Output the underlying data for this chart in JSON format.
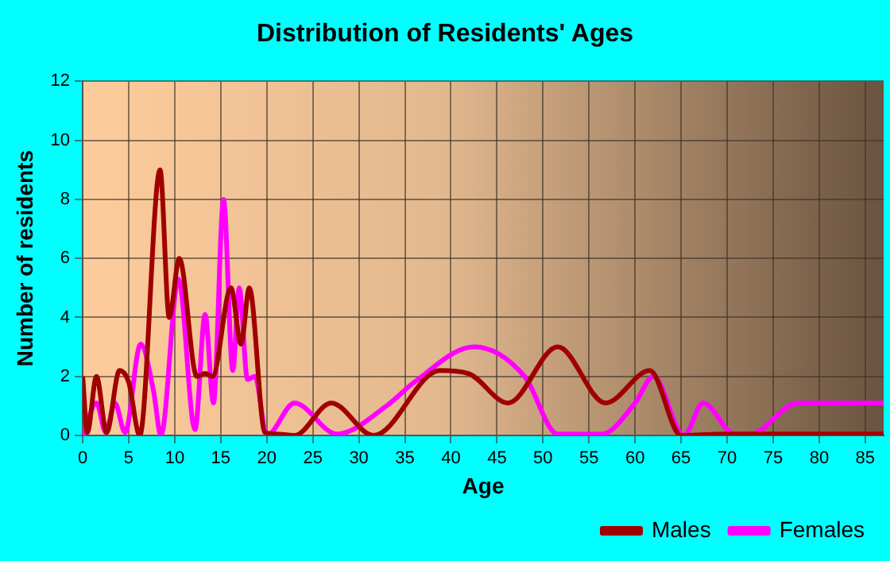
{
  "chart_data": {
    "type": "line",
    "title": "Distribution of Residents' Ages",
    "xlabel": "Age",
    "ylabel": "Number of residents",
    "series": [
      {
        "name": "Males",
        "color": "#a00000",
        "x": [
          0,
          0.5,
          1.5,
          2.6,
          4,
          5,
          6.2,
          8.4,
          9.4,
          10.5,
          12.4,
          13.3,
          14.1,
          16.1,
          17.2,
          18.1,
          19.8,
          21,
          23,
          27,
          31.6,
          38.8,
          41.9,
          46.2,
          51.6,
          56.8,
          61.6,
          65,
          70,
          87
        ],
        "values": [
          2,
          0.1,
          2,
          0.1,
          2.2,
          1.8,
          0,
          9,
          4,
          6,
          2,
          2.1,
          2,
          5,
          3.1,
          5,
          0.1,
          0.05,
          0,
          1.1,
          0,
          2.2,
          2.1,
          1.1,
          3,
          1.1,
          2.2,
          0,
          0.05,
          0.05
        ]
      },
      {
        "name": "Females",
        "color": "#ff00ff",
        "x": [
          0,
          1.5,
          2.5,
          3.5,
          4.6,
          6.3,
          7.7,
          8.5,
          10.4,
          12.2,
          13.3,
          14.2,
          15.3,
          16.3,
          17,
          17.9,
          18.7,
          20,
          23,
          27.6,
          33,
          36,
          42.5,
          48,
          51.6,
          56.4,
          60,
          62,
          65.3,
          67.4,
          70.8,
          72.5,
          77.7,
          87
        ],
        "values": [
          0,
          1.1,
          0.1,
          1.1,
          0.1,
          3.1,
          1.5,
          0,
          5.3,
          0.2,
          4.1,
          1.1,
          8,
          2.2,
          5,
          1.9,
          2,
          0,
          1.1,
          0.05,
          1,
          1.8,
          3,
          2,
          0.05,
          0.05,
          1.1,
          2,
          0,
          1.1,
          0.05,
          0.05,
          1.1,
          1.1
        ]
      }
    ],
    "xlim": [
      0,
      87
    ],
    "xticks": [
      0,
      5,
      10,
      15,
      20,
      25,
      30,
      35,
      40,
      45,
      50,
      55,
      60,
      65,
      70,
      75,
      80,
      85
    ],
    "ylim": [
      0,
      12
    ],
    "yticks": [
      0,
      2,
      4,
      6,
      8,
      10,
      12
    ],
    "grid": true,
    "legend": "bottom right",
    "marker": "none",
    "line_style": "solid"
  }
}
